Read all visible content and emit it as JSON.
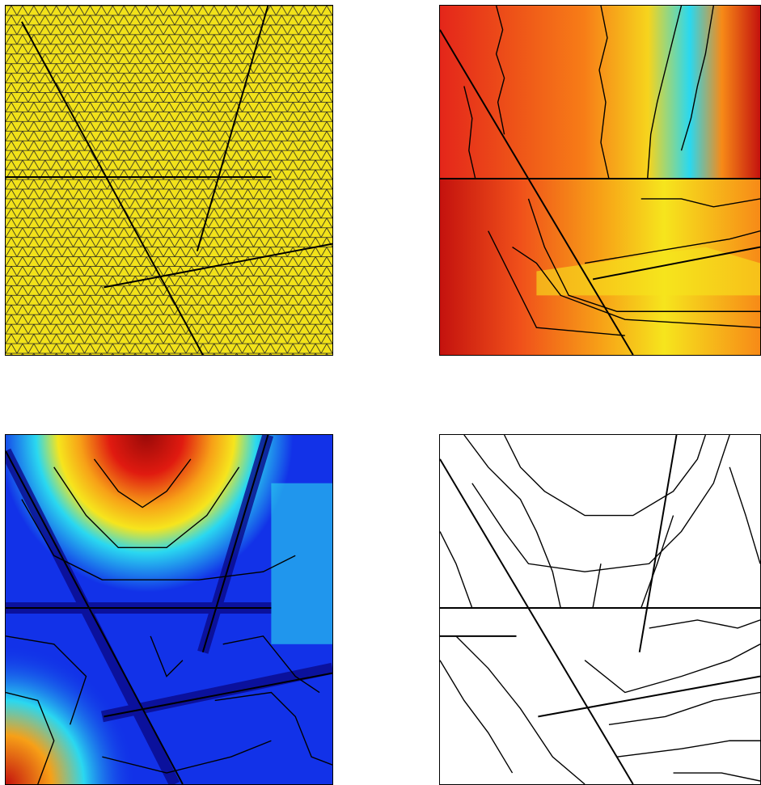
{
  "panels": [
    {
      "id": "p1",
      "kind": "mesh",
      "fill_color": "#f2e21a"
    },
    {
      "id": "p2",
      "kind": "field",
      "colormap": "jet",
      "range": "yellow-red"
    },
    {
      "id": "p3",
      "kind": "field",
      "colormap": "jet",
      "range": "blue-red"
    },
    {
      "id": "p4",
      "kind": "contours",
      "fill_color": "#ffffff"
    }
  ],
  "colors": {
    "dark_red": "#8b0000",
    "red": "#e01a10",
    "orange": "#f77d17",
    "yellow": "#f6e51d",
    "cyan": "#2ad8f0",
    "blue": "#1232e8",
    "dark_blue": "#0a0a8a",
    "line": "#000000"
  }
}
